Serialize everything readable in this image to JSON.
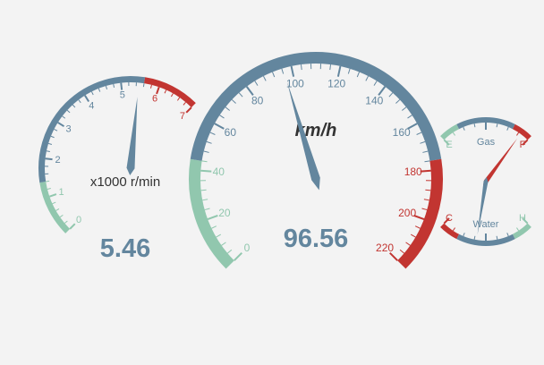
{
  "colors": {
    "background": "#f3f3f3",
    "green": "#91c7ae",
    "blue": "#63869e",
    "red": "#c23531",
    "title": "#333333"
  },
  "chart_data": [
    {
      "type": "gauge",
      "id": "rpm",
      "title": "x1000 r/min",
      "min": 0,
      "max": 7,
      "tick_labels": [
        "0",
        "1",
        "2",
        "3",
        "4",
        "5",
        "6",
        "7"
      ],
      "bands": [
        {
          "to": 0.2,
          "color": "#91c7ae"
        },
        {
          "to": 0.8,
          "color": "#63869e"
        },
        {
          "to": 1.0,
          "color": "#c23531"
        }
      ],
      "value": 5.46,
      "value_label": "5.46"
    },
    {
      "type": "gauge",
      "id": "speed",
      "title": "km/h",
      "min": 0,
      "max": 220,
      "tick_labels": [
        "0",
        "20",
        "40",
        "60",
        "80",
        "100",
        "120",
        "140",
        "160",
        "180",
        "200",
        "220"
      ],
      "bands": [
        {
          "to": 0.2,
          "color": "#91c7ae"
        },
        {
          "to": 0.8,
          "color": "#63869e"
        },
        {
          "to": 1.0,
          "color": "#c23531"
        }
      ],
      "value": 96.56,
      "value_label": "96.56"
    },
    {
      "type": "gauge",
      "id": "gas",
      "title": "Gas",
      "min": 0,
      "max": 2,
      "tick_labels": [
        "E",
        "",
        "F"
      ],
      "bands": [
        {
          "to": 0.2,
          "color": "#91c7ae"
        },
        {
          "to": 0.8,
          "color": "#63869e"
        },
        {
          "to": 1.0,
          "color": "#c23531"
        }
      ],
      "value": 1.8
    },
    {
      "type": "gauge",
      "id": "water",
      "title": "Water",
      "min": 0,
      "max": 2,
      "tick_labels": [
        "C",
        "",
        "H"
      ],
      "bands": [
        {
          "to": 0.2,
          "color": "#c23531"
        },
        {
          "to": 0.8,
          "color": "#63869e"
        },
        {
          "to": 1.0,
          "color": "#91c7ae"
        }
      ],
      "value": 0.8
    }
  ]
}
